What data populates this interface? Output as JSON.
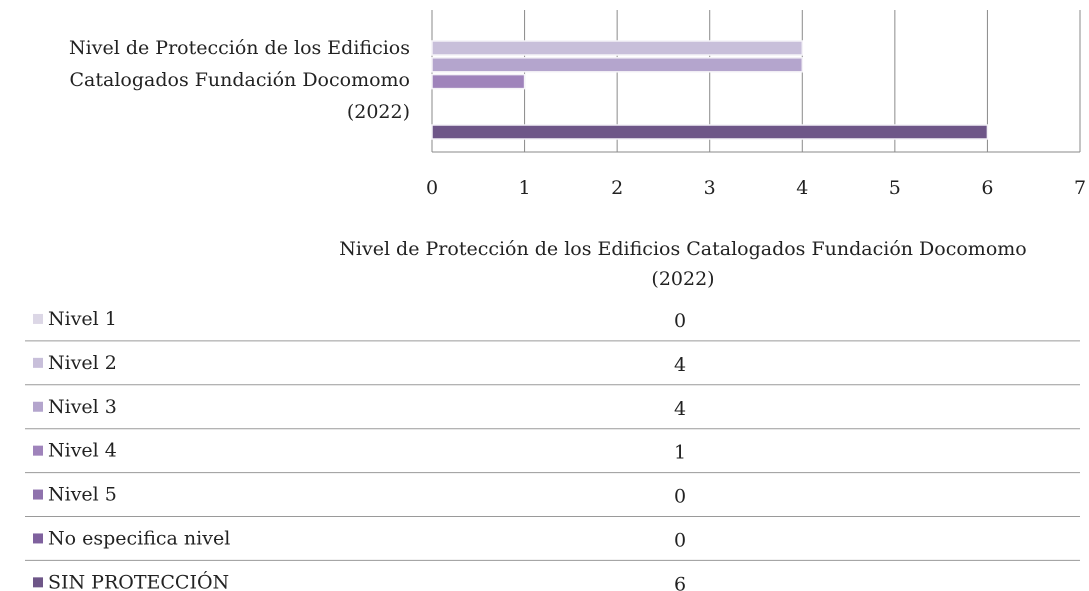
{
  "chart_data": {
    "type": "bar",
    "orientation": "horizontal",
    "categories": [
      "Nivel de Protección de los Edificios Catalogados Fundación Docomomo (2022)"
    ],
    "series": [
      {
        "name": "Nivel 1",
        "color": "#dcd7e6",
        "values": [
          0
        ]
      },
      {
        "name": "Nivel 2",
        "color": "#c8bfda",
        "values": [
          4
        ]
      },
      {
        "name": "Nivel 3",
        "color": "#b4a5cd",
        "values": [
          4
        ]
      },
      {
        "name": "Nivel 4",
        "color": "#9f83bb",
        "values": [
          1
        ]
      },
      {
        "name": "Nivel 5",
        "color": "#8f72ad",
        "values": [
          0
        ]
      },
      {
        "name": "No especifica nivel",
        "color": "#7f619e",
        "values": [
          0
        ]
      },
      {
        "name": "SIN PROTECCIÓN",
        "color": "#6e5688",
        "values": [
          6
        ]
      }
    ],
    "xlim": [
      0,
      7
    ],
    "xticks": [
      0,
      1,
      2,
      3,
      4,
      5,
      6,
      7
    ],
    "grid": true,
    "data_table": true
  }
}
